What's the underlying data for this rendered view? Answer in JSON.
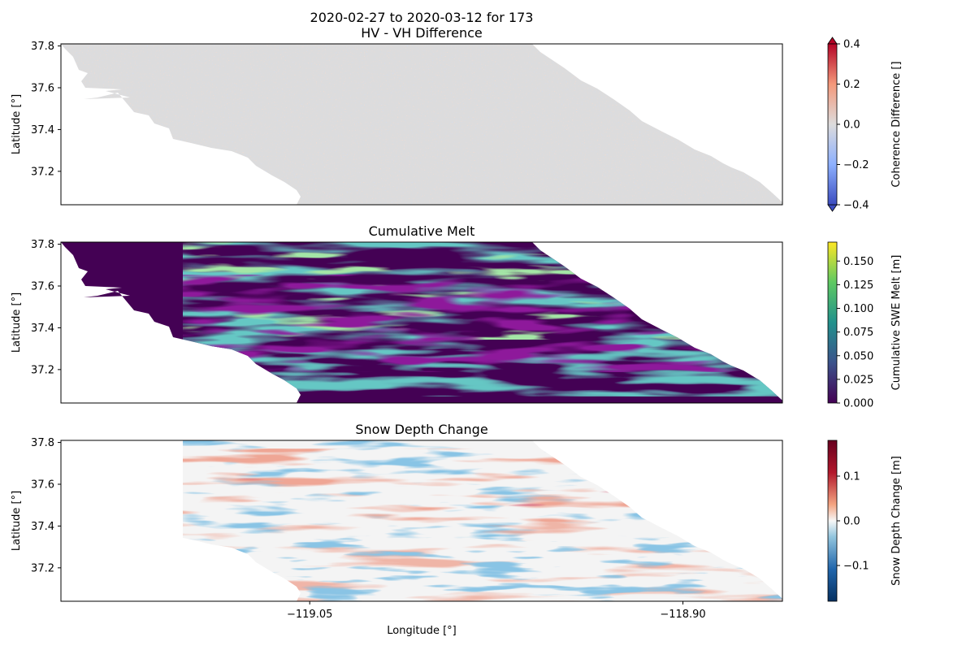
{
  "figure": {
    "suptitle": "2020-02-27 to 2020-03-12 for 173"
  },
  "chart_data": [
    {
      "type": "heatmap",
      "title": "HV - VH Difference",
      "xlabel": "",
      "ylabel": "Latitude [°]",
      "xlim": [
        -119.15,
        -118.86
      ],
      "ylim": [
        37.04,
        37.81
      ],
      "yticks": [
        {
          "value": 37.2,
          "label": "37.2"
        },
        {
          "value": 37.4,
          "label": "37.4"
        },
        {
          "value": 37.6,
          "label": "37.6"
        },
        {
          "value": 37.8,
          "label": "37.8"
        }
      ],
      "xticks": [],
      "colormap": "coolwarm",
      "clim": [
        -0.4,
        0.4
      ],
      "dominant_value": 0.0,
      "colorbar": {
        "label": "Coherence Difference []",
        "extend": "both",
        "ticks": [
          {
            "value": 0.4,
            "label": "0.4"
          },
          {
            "value": 0.2,
            "label": "0.2"
          },
          {
            "value": 0.0,
            "label": "0.0"
          },
          {
            "value": -0.2,
            "label": "−0.2"
          },
          {
            "value": -0.4,
            "label": "−0.4"
          }
        ]
      }
    },
    {
      "type": "heatmap",
      "title": "Cumulative Melt",
      "xlabel": "",
      "ylabel": "Latitude [°]",
      "xlim": [
        -119.15,
        -118.86
      ],
      "ylim": [
        37.04,
        37.81
      ],
      "yticks": [
        {
          "value": 37.2,
          "label": "37.2"
        },
        {
          "value": 37.4,
          "label": "37.4"
        },
        {
          "value": 37.6,
          "label": "37.6"
        },
        {
          "value": 37.8,
          "label": "37.8"
        }
      ],
      "xticks": [],
      "colormap": "viridis",
      "clim": [
        0.0,
        0.17
      ],
      "colorbar": {
        "label": "Cumulative SWE Melt [m]",
        "extend": "neither",
        "ticks": [
          {
            "value": 0.15,
            "label": "0.150"
          },
          {
            "value": 0.125,
            "label": "0.125"
          },
          {
            "value": 0.1,
            "label": "0.100"
          },
          {
            "value": 0.075,
            "label": "0.075"
          },
          {
            "value": 0.05,
            "label": "0.050"
          },
          {
            "value": 0.025,
            "label": "0.025"
          },
          {
            "value": 0.0,
            "label": "0.000"
          }
        ]
      }
    },
    {
      "type": "heatmap",
      "title": "Snow Depth Change",
      "xlabel": "Longitude [°]",
      "ylabel": "Latitude [°]",
      "xlim": [
        -119.15,
        -118.86
      ],
      "ylim": [
        37.04,
        37.81
      ],
      "yticks": [
        {
          "value": 37.2,
          "label": "37.2"
        },
        {
          "value": 37.4,
          "label": "37.4"
        },
        {
          "value": 37.6,
          "label": "37.6"
        },
        {
          "value": 37.8,
          "label": "37.8"
        }
      ],
      "xticks": [
        {
          "value": -119.05,
          "label": "−119.05"
        },
        {
          "value": -118.9,
          "label": "−118.90"
        }
      ],
      "colormap": "RdBu_r",
      "clim": [
        -0.18,
        0.18
      ],
      "colorbar": {
        "label": "Snow Depth Change [m]",
        "extend": "neither",
        "ticks": [
          {
            "value": 0.1,
            "label": "0.1"
          },
          {
            "value": 0.0,
            "label": "0.0"
          },
          {
            "value": -0.1,
            "label": "−0.1"
          }
        ]
      }
    }
  ]
}
